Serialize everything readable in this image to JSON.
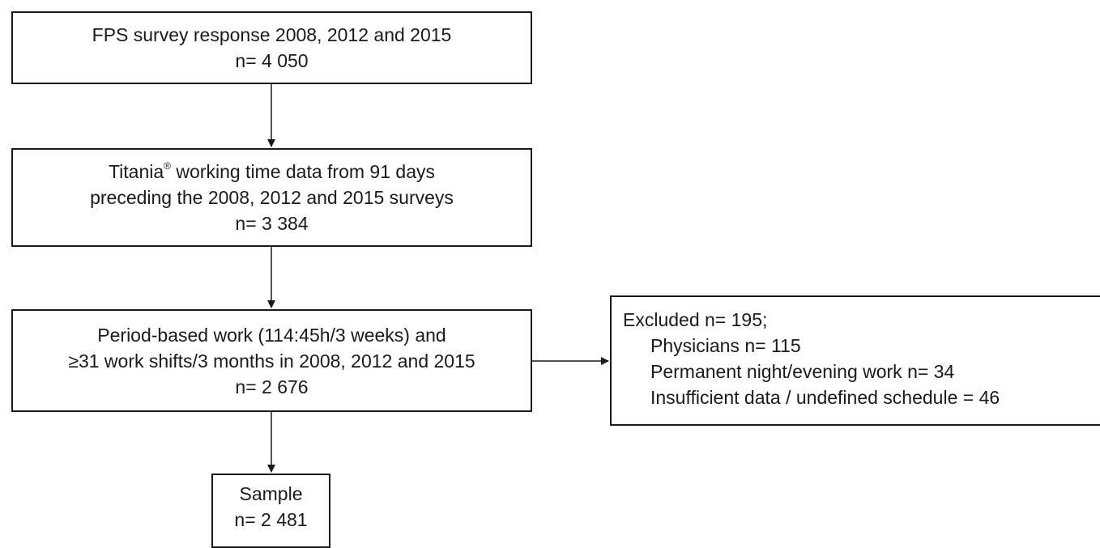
{
  "boxes": {
    "survey": {
      "lines": [
        "FPS survey response 2008, 2012 and 2015",
        "n= 4 050"
      ]
    },
    "titania": {
      "brand": "Titania",
      "brand_mark": "®",
      "line1_rest": " working time data from 91 days",
      "line2": "preceding the 2008, 2012 and 2015 surveys",
      "line3": "n= 3 384"
    },
    "period": {
      "lines": [
        "Period-based work (114:45h/3 weeks) and",
        "≥31 work shifts/3 months in 2008, 2012 and 2015",
        "n= 2 676"
      ]
    },
    "sample": {
      "lines": [
        "Sample",
        "n= 2 481"
      ]
    },
    "excluded": {
      "heading": "Excluded n= 195;",
      "items": [
        "Physicians n= 115",
        "Permanent  night/evening work n= 34",
        "Insufficient data / undefined schedule = 46"
      ]
    }
  },
  "colors": {
    "line": "#1a1a1a",
    "background": "#ffffff"
  }
}
